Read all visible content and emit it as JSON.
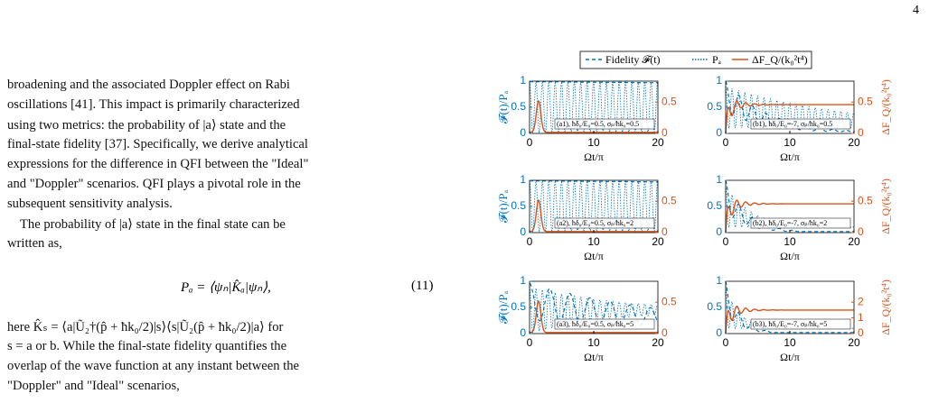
{
  "page_number": "4",
  "lines": [
    "broadening and the associated Doppler effect on Rabi",
    "oscillations [41]. This impact is primarily characterized",
    "using two metrics: the probability of |a⟩ state and the",
    "final-state fidelity [37]. Specifically, we derive analytical",
    "expressions for the difference in QFI between the \"Ideal\"",
    "and \"Doppler\" scenarios. QFI plays a pivotal role in the",
    "subsequent sensitivity analysis.",
    "The probability of |a⟩ state in the final state can be",
    "written as,"
  ],
  "equation_11": {
    "body": "Pₐ = ⟨ψₙ|K̂ₐ|ψₙ⟩,",
    "number": "(11)"
  },
  "lines_after": [
    "here K̂ₛ = ⟨a|Ũ₂†(p̂ + ħk₀/2)|s⟩⟨s|Ũ₂(p̂ + ħk₀/2)|a⟩ for",
    "s = a or b. While the final-state fidelity quantifies the",
    "overlap of the wave function at any instant between the",
    "\"Doppler\" and \"Ideal\" scenarios,"
  ],
  "figure": {
    "legend": [
      "Fidelity 𝓕(t)",
      "Pₐ",
      "ΔF_Q/(k₀²t⁴)"
    ],
    "panels": [
      {
        "label": "(a1), ħδ₀/E₀=0.5, σₚ/ħk₀=0.5",
        "xticks": [
          0,
          10,
          20
        ],
        "xlabel": "Ωt/π",
        "yticks": [
          0,
          0.5,
          1
        ],
        "ylabel": "𝓕(t)/Pₐ",
        "y2ticks": [
          0,
          0.5
        ]
      },
      {
        "label": "(b1), ħδ₀/E₀=-7, σₚ/ħk₀=0.5",
        "xticks": [
          0,
          10,
          20
        ],
        "xlabel": "Ωt/π",
        "yticks": [
          0,
          0.5,
          1
        ],
        "y2ticks": [
          0,
          0.5
        ],
        "y2label": "ΔF_Q/(k₀²t⁴)"
      },
      {
        "label": "(a2), ħδ₀/E₀=0.5, σₚ/ħk₀=2",
        "xticks": [
          0,
          10,
          20
        ],
        "xlabel": "Ωt/π",
        "yticks": [
          0,
          0.5,
          1
        ],
        "ylabel": "𝓕(t)/Pₐ",
        "y2ticks": [
          0,
          0.5
        ]
      },
      {
        "label": "(b2), ħδ₀/E₀=-7, σₚ/ħk₀=2",
        "xticks": [
          0,
          10,
          20
        ],
        "xlabel": "Ωt/π",
        "yticks": [
          0,
          0.5,
          1
        ],
        "y2ticks": [
          0,
          0.5
        ],
        "y2label": "ΔF_Q/(k₀²t⁴)"
      },
      {
        "label": "(a3), ħδ₀/E₀=0.5, σₚ/ħk₀=5",
        "xticks": [
          0,
          10,
          20
        ],
        "xlabel": "Ωt/π",
        "yticks": [
          0,
          0.5,
          1
        ],
        "ylabel": "𝓕(t)/Pₐ",
        "y2ticks": [
          0,
          0.5
        ]
      },
      {
        "label": "(b3), ħδ₀/E₀=-7, σₚ/ħk₀=5",
        "xticks": [
          0,
          10,
          20
        ],
        "xlabel": "Ωt/π",
        "yticks": [
          0,
          0.5,
          1
        ],
        "y2ticks": [
          0,
          1,
          2
        ],
        "y2label": "ΔF_Q/(k₀²t⁴)"
      }
    ]
  }
}
